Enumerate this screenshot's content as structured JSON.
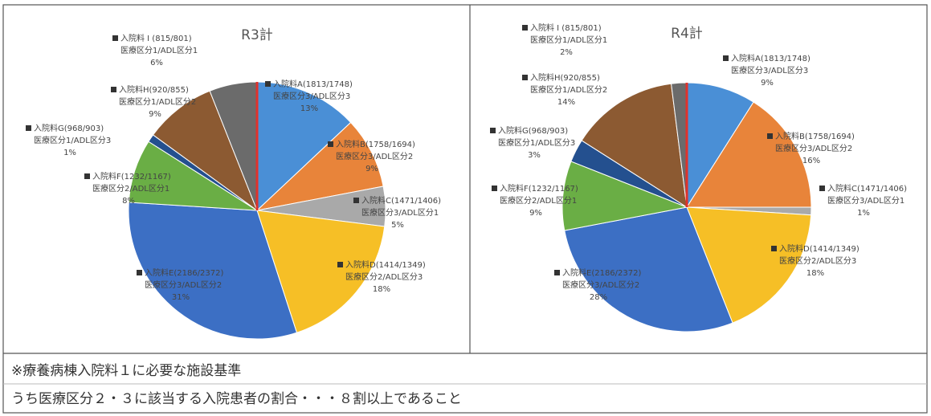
{
  "chart_data": [
    {
      "type": "pie",
      "title": "R3計",
      "categories": [
        "入院料A(1813/1748)",
        "入院料B(1758/1694)",
        "入院料C(1471/1406)",
        "入院料D(1414/1349)",
        "入院料E(2186/2372)",
        "入院料F(1232/1167)",
        "入院料G(968/903)",
        "入院料H(920/855)",
        "入院料 I (815/801)"
      ],
      "details": [
        "医療区分3/ADL区分3",
        "医療区分3/ADL区分2",
        "医療区分3/ADL区分1",
        "医療区分2/ADL区分3",
        "医療区分3/ADL区分2",
        "医療区分2/ADL区分1",
        "医療区分1/ADL区分3",
        "医療区分1/ADL区分2",
        "医療区分1/ADL区分1"
      ],
      "values": [
        13,
        9,
        5,
        18,
        31,
        8,
        1,
        9,
        6
      ],
      "value_labels": [
        "13%",
        "9%",
        "5%",
        "18%",
        "31%",
        "8%",
        "1%",
        "9%",
        "6%"
      ],
      "colors": [
        "#4a8fd6",
        "#e8843a",
        "#a9a9a9",
        "#f6bf26",
        "#3c6fc4",
        "#6aae45",
        "#24508f",
        "#8c5a32",
        "#6b6b6b"
      ]
    },
    {
      "type": "pie",
      "title": "R4計",
      "categories": [
        "入院料A(1813/1748)",
        "入院料B(1758/1694)",
        "入院料C(1471/1406)",
        "入院料D(1414/1349)",
        "入院料E(2186/2372)",
        "入院料F(1232/1167)",
        "入院料G(968/903)",
        "入院料H(920/855)",
        "入院料 I (815/801)"
      ],
      "details": [
        "医療区分3/ADL区分3",
        "医療区分3/ADL区分2",
        "医療区分3/ADL区分1",
        "医療区分2/ADL区分3",
        "医療区分3/ADL区分2",
        "医療区分2/ADL区分1",
        "医療区分1/ADL区分3",
        "医療区分1/ADL区分2",
        "医療区分1/ADL区分1"
      ],
      "values": [
        9,
        16,
        1,
        18,
        28,
        9,
        3,
        14,
        2
      ],
      "value_labels": [
        "9%",
        "16%",
        "1%",
        "18%",
        "28%",
        "9%",
        "3%",
        "14%",
        "2%"
      ],
      "colors": [
        "#4a8fd6",
        "#e8843a",
        "#a9a9a9",
        "#f6bf26",
        "#3c6fc4",
        "#6aae45",
        "#24508f",
        "#8c5a32",
        "#6b6b6b"
      ]
    }
  ],
  "notes": [
    "※療養病棟入院料１に必要な施設基準",
    "うち医療区分２・３に該当する入院患者の割合・・・８割以上であること"
  ]
}
